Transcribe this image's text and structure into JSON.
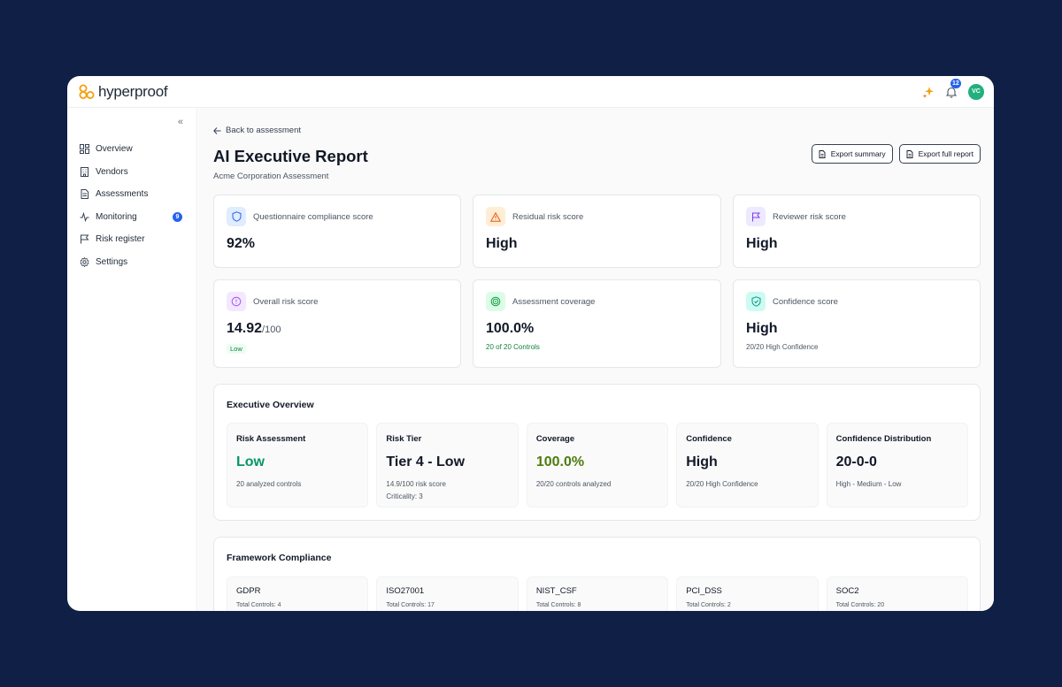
{
  "app": {
    "brand": "hyperproof",
    "notification_count": "12",
    "avatar_initials": "VC",
    "accent": "#2563eb"
  },
  "sidebar": {
    "collapse_icon": "double-chevron-left-icon",
    "items": [
      {
        "label": "Overview",
        "icon": "grid-icon"
      },
      {
        "label": "Vendors",
        "icon": "building-icon"
      },
      {
        "label": "Assessments",
        "icon": "document-icon"
      },
      {
        "label": "Monitoring",
        "icon": "activity-icon",
        "badge": "9"
      },
      {
        "label": "Risk register",
        "icon": "flag-icon"
      },
      {
        "label": "Settings",
        "icon": "gear-icon"
      }
    ]
  },
  "header": {
    "back_label": "Back to assessment",
    "title": "AI Executive Report",
    "subtitle": "Acme Corporation Assessment",
    "export_summary": "Export summary",
    "export_full": "Export full report"
  },
  "metrics": [
    {
      "label": "Questionnaire compliance score",
      "value": "92%",
      "icon": "shield-icon",
      "color": "#2563eb",
      "bg": "#e0ecff"
    },
    {
      "label": "Residual risk score",
      "value": "High",
      "icon": "warning-icon",
      "color": "#ea580c",
      "bg": "#ffedd5"
    },
    {
      "label": "Reviewer risk score",
      "value": "High",
      "icon": "flag-icon",
      "color": "#7c3aed",
      "bg": "#ede9fe"
    },
    {
      "label": "Overall risk score",
      "value": "14.92",
      "value_suffix": "/100",
      "pill": "Low",
      "icon": "alert-circle-icon",
      "color": "#a855f7",
      "bg": "#f3e8ff"
    },
    {
      "label": "Assessment coverage",
      "value": "100.0%",
      "sub": "20 of 20 Controls",
      "sub_color": "#15803d",
      "icon": "target-icon",
      "color": "#16a34a",
      "bg": "#dcfce7"
    },
    {
      "label": "Confidence score",
      "value": "High",
      "sub": "20/20 High Confidence",
      "sub_color": "#4b5563",
      "icon": "shield-check-icon",
      "color": "#0d9488",
      "bg": "#ccfbf1"
    }
  ],
  "executive_overview": {
    "title": "Executive Overview",
    "tiles": [
      {
        "label": "Risk Assessment",
        "value": "Low",
        "value_color": "#059669",
        "sub": "20 analyzed controls"
      },
      {
        "label": "Risk Tier",
        "value": "Tier 4 - Low",
        "value_color": "#111827",
        "sub": "14.9/100 risk score",
        "sub2": "Criticality: 3"
      },
      {
        "label": "Coverage",
        "value": "100.0%",
        "value_color": "#4d7c0f",
        "sub": "20/20 controls analyzed"
      },
      {
        "label": "Confidence",
        "value": "High",
        "value_color": "#111827",
        "sub": "20/20 High Confidence"
      },
      {
        "label": "Confidence Distribution",
        "value": "20-0-0",
        "value_color": "#111827",
        "sub": "High - Medium - Low"
      }
    ]
  },
  "framework_compliance": {
    "title": "Framework Compliance",
    "frameworks": [
      {
        "name": "GDPR",
        "count": "Total Controls: 4"
      },
      {
        "name": "ISO27001",
        "count": "Total Controls: 17"
      },
      {
        "name": "NIST_CSF",
        "count": "Total Controls: 8"
      },
      {
        "name": "PCI_DSS",
        "count": "Total Controls: 2"
      },
      {
        "name": "SOC2",
        "count": "Total Controls: 20"
      }
    ]
  }
}
